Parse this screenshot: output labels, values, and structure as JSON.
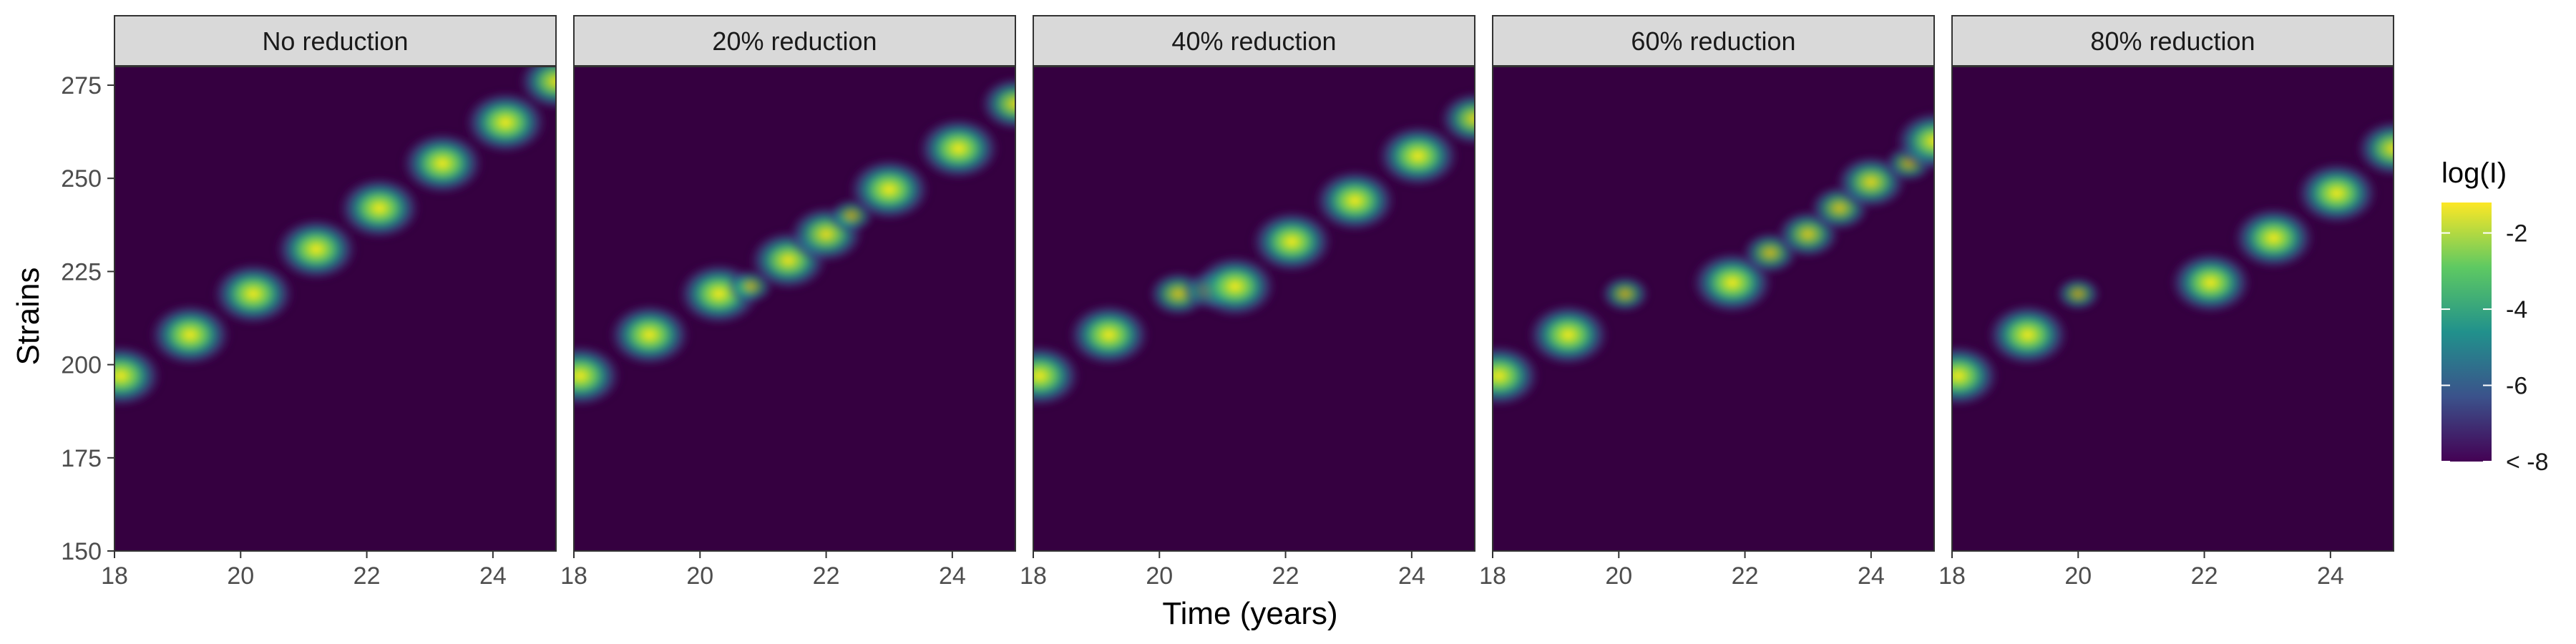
{
  "chart_data": {
    "type": "heatmap",
    "facet_labels": [
      "No reduction",
      "20% reduction",
      "40% reduction",
      "60% reduction",
      "80% reduction"
    ],
    "xlabel": "Time (years)",
    "ylabel": "Strains",
    "xlim": [
      18,
      25
    ],
    "ylim": [
      150,
      280
    ],
    "x_ticks": [
      18,
      20,
      22,
      24
    ],
    "y_ticks": [
      150,
      175,
      200,
      225,
      250,
      275
    ],
    "legend": {
      "title": "log(I)",
      "ticks": [
        "-2",
        "-4",
        "-6",
        "< -8"
      ],
      "tick_values": [
        -2,
        -4,
        -6,
        -8
      ],
      "range": [
        -8,
        -1.2
      ],
      "placement": "right",
      "colors": [
        "#440154",
        "#3b528b",
        "#21918c",
        "#5ec962",
        "#fde725"
      ]
    },
    "background_color": "#350040",
    "panels": [
      {
        "name": "No reduction",
        "blobs": [
          [
            18.1,
            197,
            1.0
          ],
          [
            19.2,
            208,
            1.0
          ],
          [
            20.2,
            219,
            1.0
          ],
          [
            21.2,
            231,
            1.0
          ],
          [
            22.2,
            242,
            1.0
          ],
          [
            23.2,
            254,
            1.0
          ],
          [
            24.2,
            265,
            1.0
          ],
          [
            25.0,
            276,
            0.9
          ]
        ]
      },
      {
        "name": "20% reduction",
        "blobs": [
          [
            18.1,
            197,
            1.0
          ],
          [
            19.2,
            208,
            1.0
          ],
          [
            20.3,
            219,
            1.0
          ],
          [
            20.8,
            221,
            0.5
          ],
          [
            21.4,
            228,
            0.95
          ],
          [
            22.0,
            235,
            0.9
          ],
          [
            22.4,
            240,
            0.5
          ],
          [
            23.0,
            247,
            1.0
          ],
          [
            24.1,
            258,
            1.0
          ],
          [
            25.0,
            270,
            0.85
          ]
        ]
      },
      {
        "name": "40% reduction",
        "blobs": [
          [
            18.1,
            197,
            1.0
          ],
          [
            19.2,
            208,
            1.0
          ],
          [
            20.3,
            219,
            0.7
          ],
          [
            20.8,
            220,
            0.6
          ],
          [
            21.2,
            221,
            1.0
          ],
          [
            22.1,
            233,
            1.0
          ],
          [
            23.1,
            244,
            1.0
          ],
          [
            24.1,
            256,
            1.0
          ],
          [
            25.0,
            266,
            0.85
          ]
        ]
      },
      {
        "name": "60% reduction",
        "blobs": [
          [
            18.1,
            197,
            1.0
          ],
          [
            19.2,
            208,
            1.0
          ],
          [
            20.1,
            219,
            0.55
          ],
          [
            21.8,
            222,
            1.0
          ],
          [
            22.4,
            230,
            0.65
          ],
          [
            23.0,
            235,
            0.75
          ],
          [
            23.5,
            242,
            0.7
          ],
          [
            24.0,
            249,
            0.85
          ],
          [
            24.6,
            254,
            0.55
          ],
          [
            25.0,
            260,
            0.95
          ]
        ]
      },
      {
        "name": "80% reduction",
        "blobs": [
          [
            18.1,
            197,
            1.0
          ],
          [
            19.2,
            208,
            1.0
          ],
          [
            20.0,
            219,
            0.5
          ],
          [
            22.1,
            222,
            1.0
          ],
          [
            23.1,
            234,
            1.0
          ],
          [
            24.1,
            246,
            1.0
          ],
          [
            25.0,
            258,
            0.9
          ]
        ]
      }
    ]
  }
}
